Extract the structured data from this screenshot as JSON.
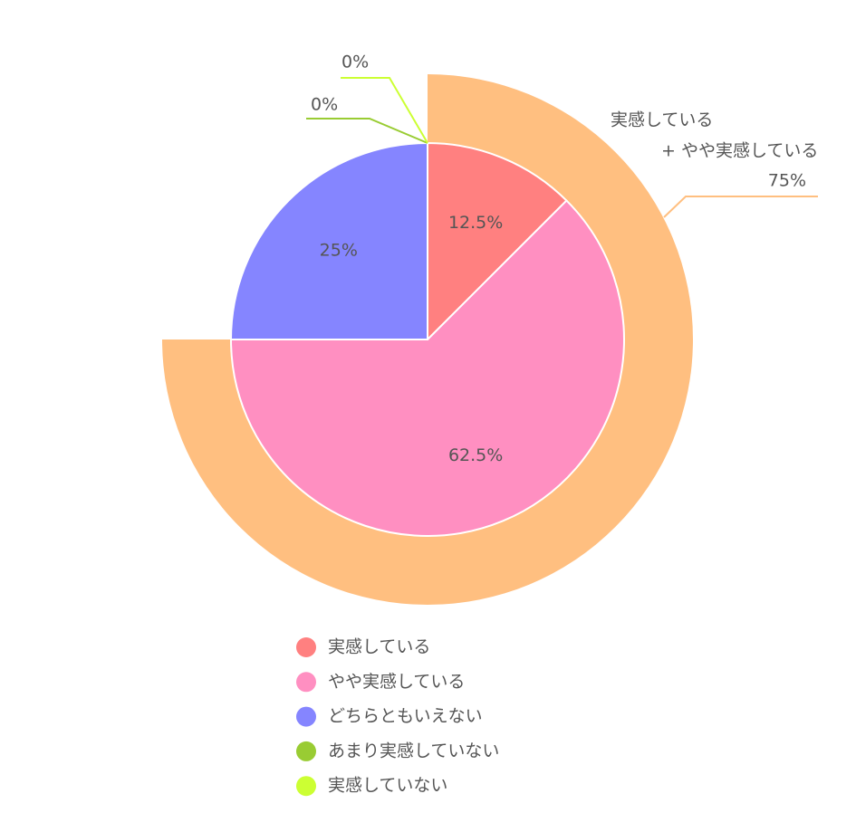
{
  "chart_data": {
    "type": "pie",
    "categories": [
      "実感している",
      "やや実感している",
      "どちらともいえない",
      "あまり実感していない",
      "実感していない"
    ],
    "values": [
      12.5,
      62.5,
      25,
      0,
      0
    ],
    "value_labels": [
      "12.5%",
      "62.5%",
      "25%",
      "0%",
      "0%"
    ],
    "colors": [
      "#ff8080",
      "#ff8fc1",
      "#8585ff",
      "#99cc33",
      "#ccff33"
    ],
    "outer_ring": {
      "name_lines": [
        "実感している",
        "+ やや実感している"
      ],
      "value": 75,
      "value_label": "75%",
      "color": "#ffbf80"
    }
  }
}
